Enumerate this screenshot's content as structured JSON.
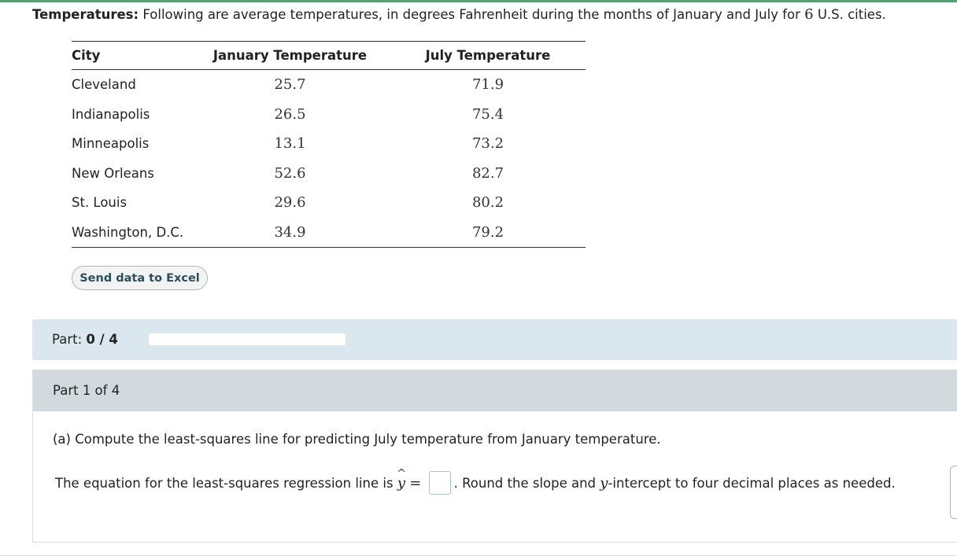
{
  "intro": {
    "heading": "Temperatures:",
    "text_before": "Following are average temperatures, in degrees Fahrenheit during the months of January and July for",
    "count": "6",
    "text_after": "U.S. cities."
  },
  "table": {
    "headers": [
      "City",
      "January Temperature",
      "July Temperature"
    ],
    "rows": [
      {
        "city": "Cleveland",
        "january": "25.7",
        "july": "71.9"
      },
      {
        "city": "Indianapolis",
        "january": "26.5",
        "july": "75.4"
      },
      {
        "city": "Minneapolis",
        "january": "13.1",
        "july": "73.2"
      },
      {
        "city": "New Orleans",
        "january": "52.6",
        "july": "82.7"
      },
      {
        "city": "St. Louis",
        "january": "29.6",
        "july": "80.2"
      },
      {
        "city": "Washington, D.C.",
        "january": "34.9",
        "july": "79.2"
      }
    ]
  },
  "excel_button": {
    "label": "Send data to Excel"
  },
  "progress": {
    "label": "Part:",
    "value": "0 / 4",
    "fraction": 0
  },
  "part": {
    "title": "Part 1 of 4",
    "question": "(a) Compute the least-squares line for predicting July temperature from January temperature.",
    "answer_prefix": "The equation for the least-squares regression line is",
    "y_symbol": "y",
    "hat_symbol": "^",
    "equals": "=",
    "answer_value": "",
    "suffix_before": ". Round the slope and",
    "y_var": "y",
    "suffix_after": "-intercept to four decimal places as needed."
  },
  "colors": {
    "accent": "#5a9e74",
    "progress_bar_bg": "#dbe7ef",
    "part_header_bg": "#d2dadd"
  }
}
